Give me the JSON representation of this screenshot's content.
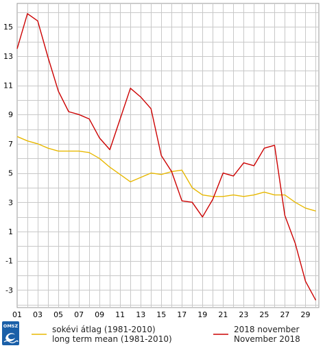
{
  "chart_data": {
    "type": "line",
    "x": [
      1,
      2,
      3,
      4,
      5,
      6,
      7,
      8,
      9,
      10,
      11,
      12,
      13,
      14,
      15,
      16,
      17,
      18,
      19,
      20,
      21,
      22,
      23,
      24,
      25,
      26,
      27,
      28,
      29,
      30
    ],
    "xticklabels": [
      "01",
      "03",
      "05",
      "07",
      "09",
      "11",
      "13",
      "15",
      "17",
      "19",
      "21",
      "23",
      "25",
      "27",
      "29"
    ],
    "xtick_values": [
      1,
      3,
      5,
      7,
      9,
      11,
      13,
      15,
      17,
      19,
      21,
      23,
      25,
      27,
      29
    ],
    "ytick_values": [
      -3,
      -1,
      1,
      3,
      5,
      7,
      9,
      11,
      13,
      15
    ],
    "ytick_labels": [
      "-3",
      "-1",
      "1",
      "3",
      "5",
      "7",
      "9",
      "11",
      "13",
      "15"
    ],
    "xlim": [
      1,
      30.3
    ],
    "ylim": [
      -4.2,
      16.6
    ],
    "grid": true,
    "legend_position": "bottom",
    "series": [
      {
        "name_line1": "sokévi átlag (1981-2010)",
        "name_line2": "long term mean (1981-2010)",
        "color": "#e8b800",
        "values": [
          7.5,
          7.2,
          7.0,
          6.7,
          6.5,
          6.5,
          6.5,
          6.4,
          6.0,
          5.4,
          4.9,
          4.4,
          4.7,
          5.0,
          4.9,
          5.1,
          5.2,
          4.0,
          3.5,
          3.4,
          3.4,
          3.5,
          3.4,
          3.5,
          3.7,
          3.5,
          3.5,
          3.0,
          2.6,
          2.4
        ]
      },
      {
        "name_line1": "2018 november",
        "name_line2": "November 2018",
        "color": "#cc0000",
        "values": [
          13.5,
          15.9,
          15.4,
          12.9,
          10.6,
          9.2,
          9.0,
          8.7,
          7.4,
          6.6,
          8.7,
          10.8,
          10.2,
          9.4,
          6.2,
          5.1,
          3.1,
          3.0,
          2.0,
          3.2,
          5.0,
          4.8,
          5.7,
          5.5,
          6.7,
          6.9,
          2.1,
          0.2,
          -2.4,
          -3.7
        ]
      }
    ]
  },
  "logo": {
    "text": "OMSZ",
    "color": "#1a5fa8"
  }
}
